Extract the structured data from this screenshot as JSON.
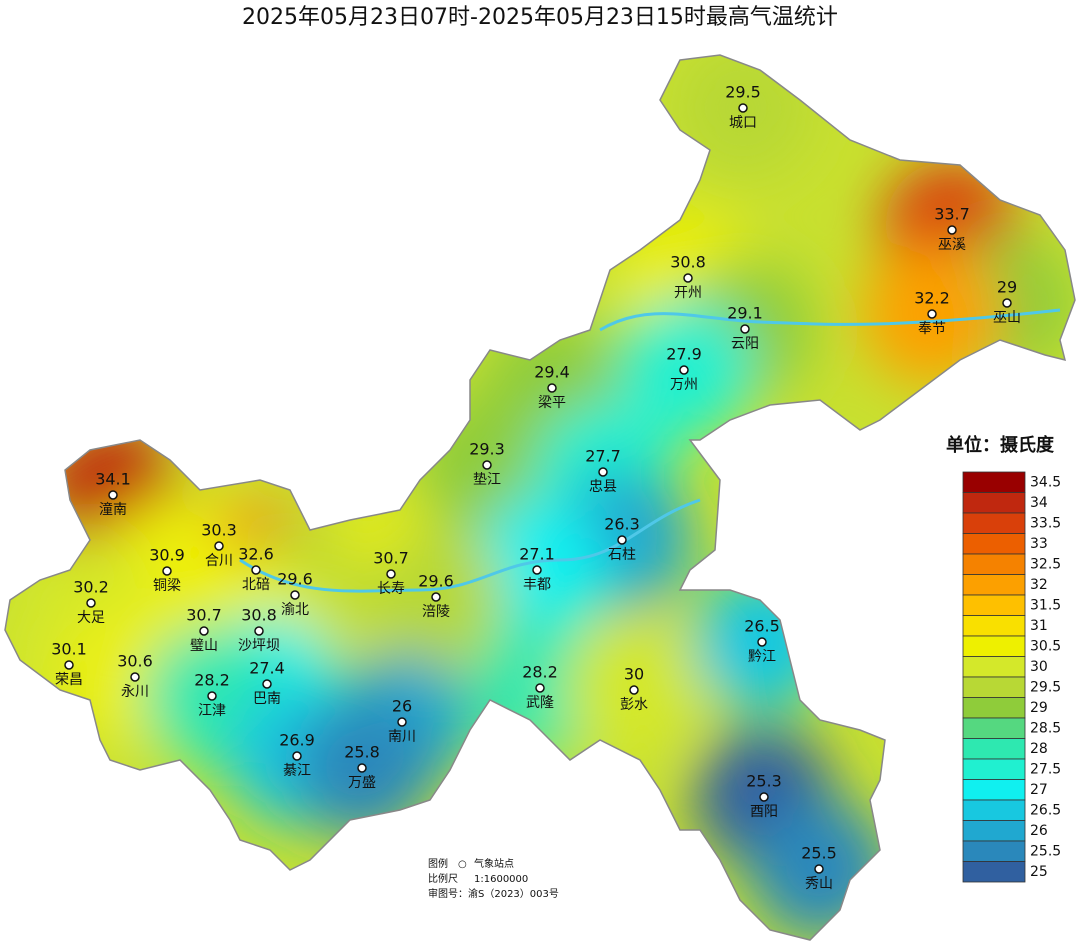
{
  "title": "2025年05月23日07时-2025年05月23日15时最高气温统计",
  "stations": [
    {
      "value": 29.5,
      "name": "城口"
    },
    {
      "value": 33.7,
      "name": "巫溪"
    },
    {
      "value": 30.8,
      "name": "开州"
    },
    {
      "value": 29,
      "name": "巫山"
    },
    {
      "value": 32.2,
      "name": "奉节"
    },
    {
      "value": 29.1,
      "name": "云阳"
    },
    {
      "value": 27.9,
      "name": "万州"
    },
    {
      "value": 29.4,
      "name": "梁平"
    },
    {
      "value": 29.3,
      "name": "垫江"
    },
    {
      "value": 27.7,
      "name": "忠县"
    },
    {
      "value": 34.1,
      "name": "潼南"
    },
    {
      "value": 26.3,
      "name": "石柱"
    },
    {
      "value": 30.3,
      "name": "合川"
    },
    {
      "value": 32.6,
      "name": "北碚"
    },
    {
      "value": 27.1,
      "name": "丰都"
    },
    {
      "value": 30.9,
      "name": "铜梁"
    },
    {
      "value": 30.7,
      "name": "长寿"
    },
    {
      "value": 29.6,
      "name": "渝北"
    },
    {
      "value": 29.6,
      "name": "涪陵"
    },
    {
      "value": 30.2,
      "name": "大足"
    },
    {
      "value": 30.7,
      "name": "璧山"
    },
    {
      "value": 30.8,
      "name": "沙坪坝"
    },
    {
      "value": 26.5,
      "name": "黔江"
    },
    {
      "value": 30.1,
      "name": "荣昌"
    },
    {
      "value": 30.6,
      "name": "永川"
    },
    {
      "value": 27.4,
      "name": "巴南"
    },
    {
      "value": 28.2,
      "name": "武隆"
    },
    {
      "value": 30,
      "name": "彭水"
    },
    {
      "value": 28.2,
      "name": "江津"
    },
    {
      "value": 26,
      "name": "南川"
    },
    {
      "value": 26.9,
      "name": "綦江"
    },
    {
      "value": 25.8,
      "name": "万盛"
    },
    {
      "value": 25.3,
      "name": "酉阳"
    },
    {
      "value": 25.5,
      "name": "秀山"
    }
  ],
  "legend": {
    "unit": "单位：摄氏度",
    "items": [
      {
        "value": 34.5,
        "color": "#990000"
      },
      {
        "value": 34,
        "color": "#c0280f"
      },
      {
        "value": 33.5,
        "color": "#d9400a"
      },
      {
        "value": 33,
        "color": "#ec5f00"
      },
      {
        "value": 32.5,
        "color": "#f58200"
      },
      {
        "value": 32,
        "color": "#fca000"
      },
      {
        "value": 31.5,
        "color": "#fec000"
      },
      {
        "value": 31,
        "color": "#f9e000"
      },
      {
        "value": 30.5,
        "color": "#eef000"
      },
      {
        "value": 30,
        "color": "#d4e82a"
      },
      {
        "value": 29.5,
        "color": "#b8d835"
      },
      {
        "value": 29,
        "color": "#8fcc3a"
      },
      {
        "value": 28.5,
        "color": "#55d880"
      },
      {
        "value": 28,
        "color": "#2ee8b0"
      },
      {
        "value": 27.5,
        "color": "#20f0d0"
      },
      {
        "value": 27,
        "color": "#10f0f0"
      },
      {
        "value": 26.5,
        "color": "#18c8e0"
      },
      {
        "value": 26,
        "color": "#20a8d0"
      },
      {
        "value": 25.5,
        "color": "#2a88bb"
      },
      {
        "value": 25,
        "color": "#3060a0"
      }
    ]
  },
  "footnote": {
    "legend_label": "图例",
    "symbol": "○",
    "station_label": "气象站点",
    "scale_label": "比例尺",
    "scale": "1:1600000",
    "approval": "审图号：渝S（2023）003号"
  }
}
